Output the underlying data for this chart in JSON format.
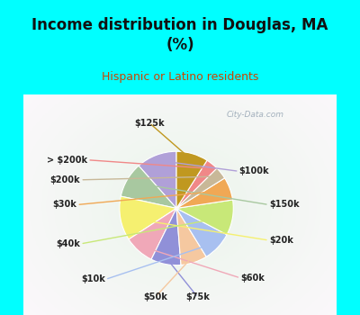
{
  "title": "Income distribution in Douglas, MA\n(%)",
  "subtitle": "Hispanic or Latino residents",
  "background_top": "#00FFFF",
  "background_chart_color": "#d0ede0",
  "labels": [
    "$100k",
    "$150k",
    "$20k",
    "$60k",
    "$75k",
    "$50k",
    "$10k",
    "$40k",
    "$30k",
    "$200k",
    "> $200k",
    "$125k"
  ],
  "values": [
    11.5,
    10.0,
    12.5,
    8.5,
    8.5,
    7.5,
    8.5,
    10.0,
    6.5,
    3.5,
    3.5,
    9.0
  ],
  "colors": [
    "#b0a0d8",
    "#a8c8a0",
    "#f5f070",
    "#f0a8b8",
    "#9090d8",
    "#f5c8a0",
    "#a8c0f0",
    "#c8e878",
    "#f0a855",
    "#c8b898",
    "#f08888",
    "#c09820"
  ],
  "startangle": 90,
  "watermark": "City-Data.com"
}
